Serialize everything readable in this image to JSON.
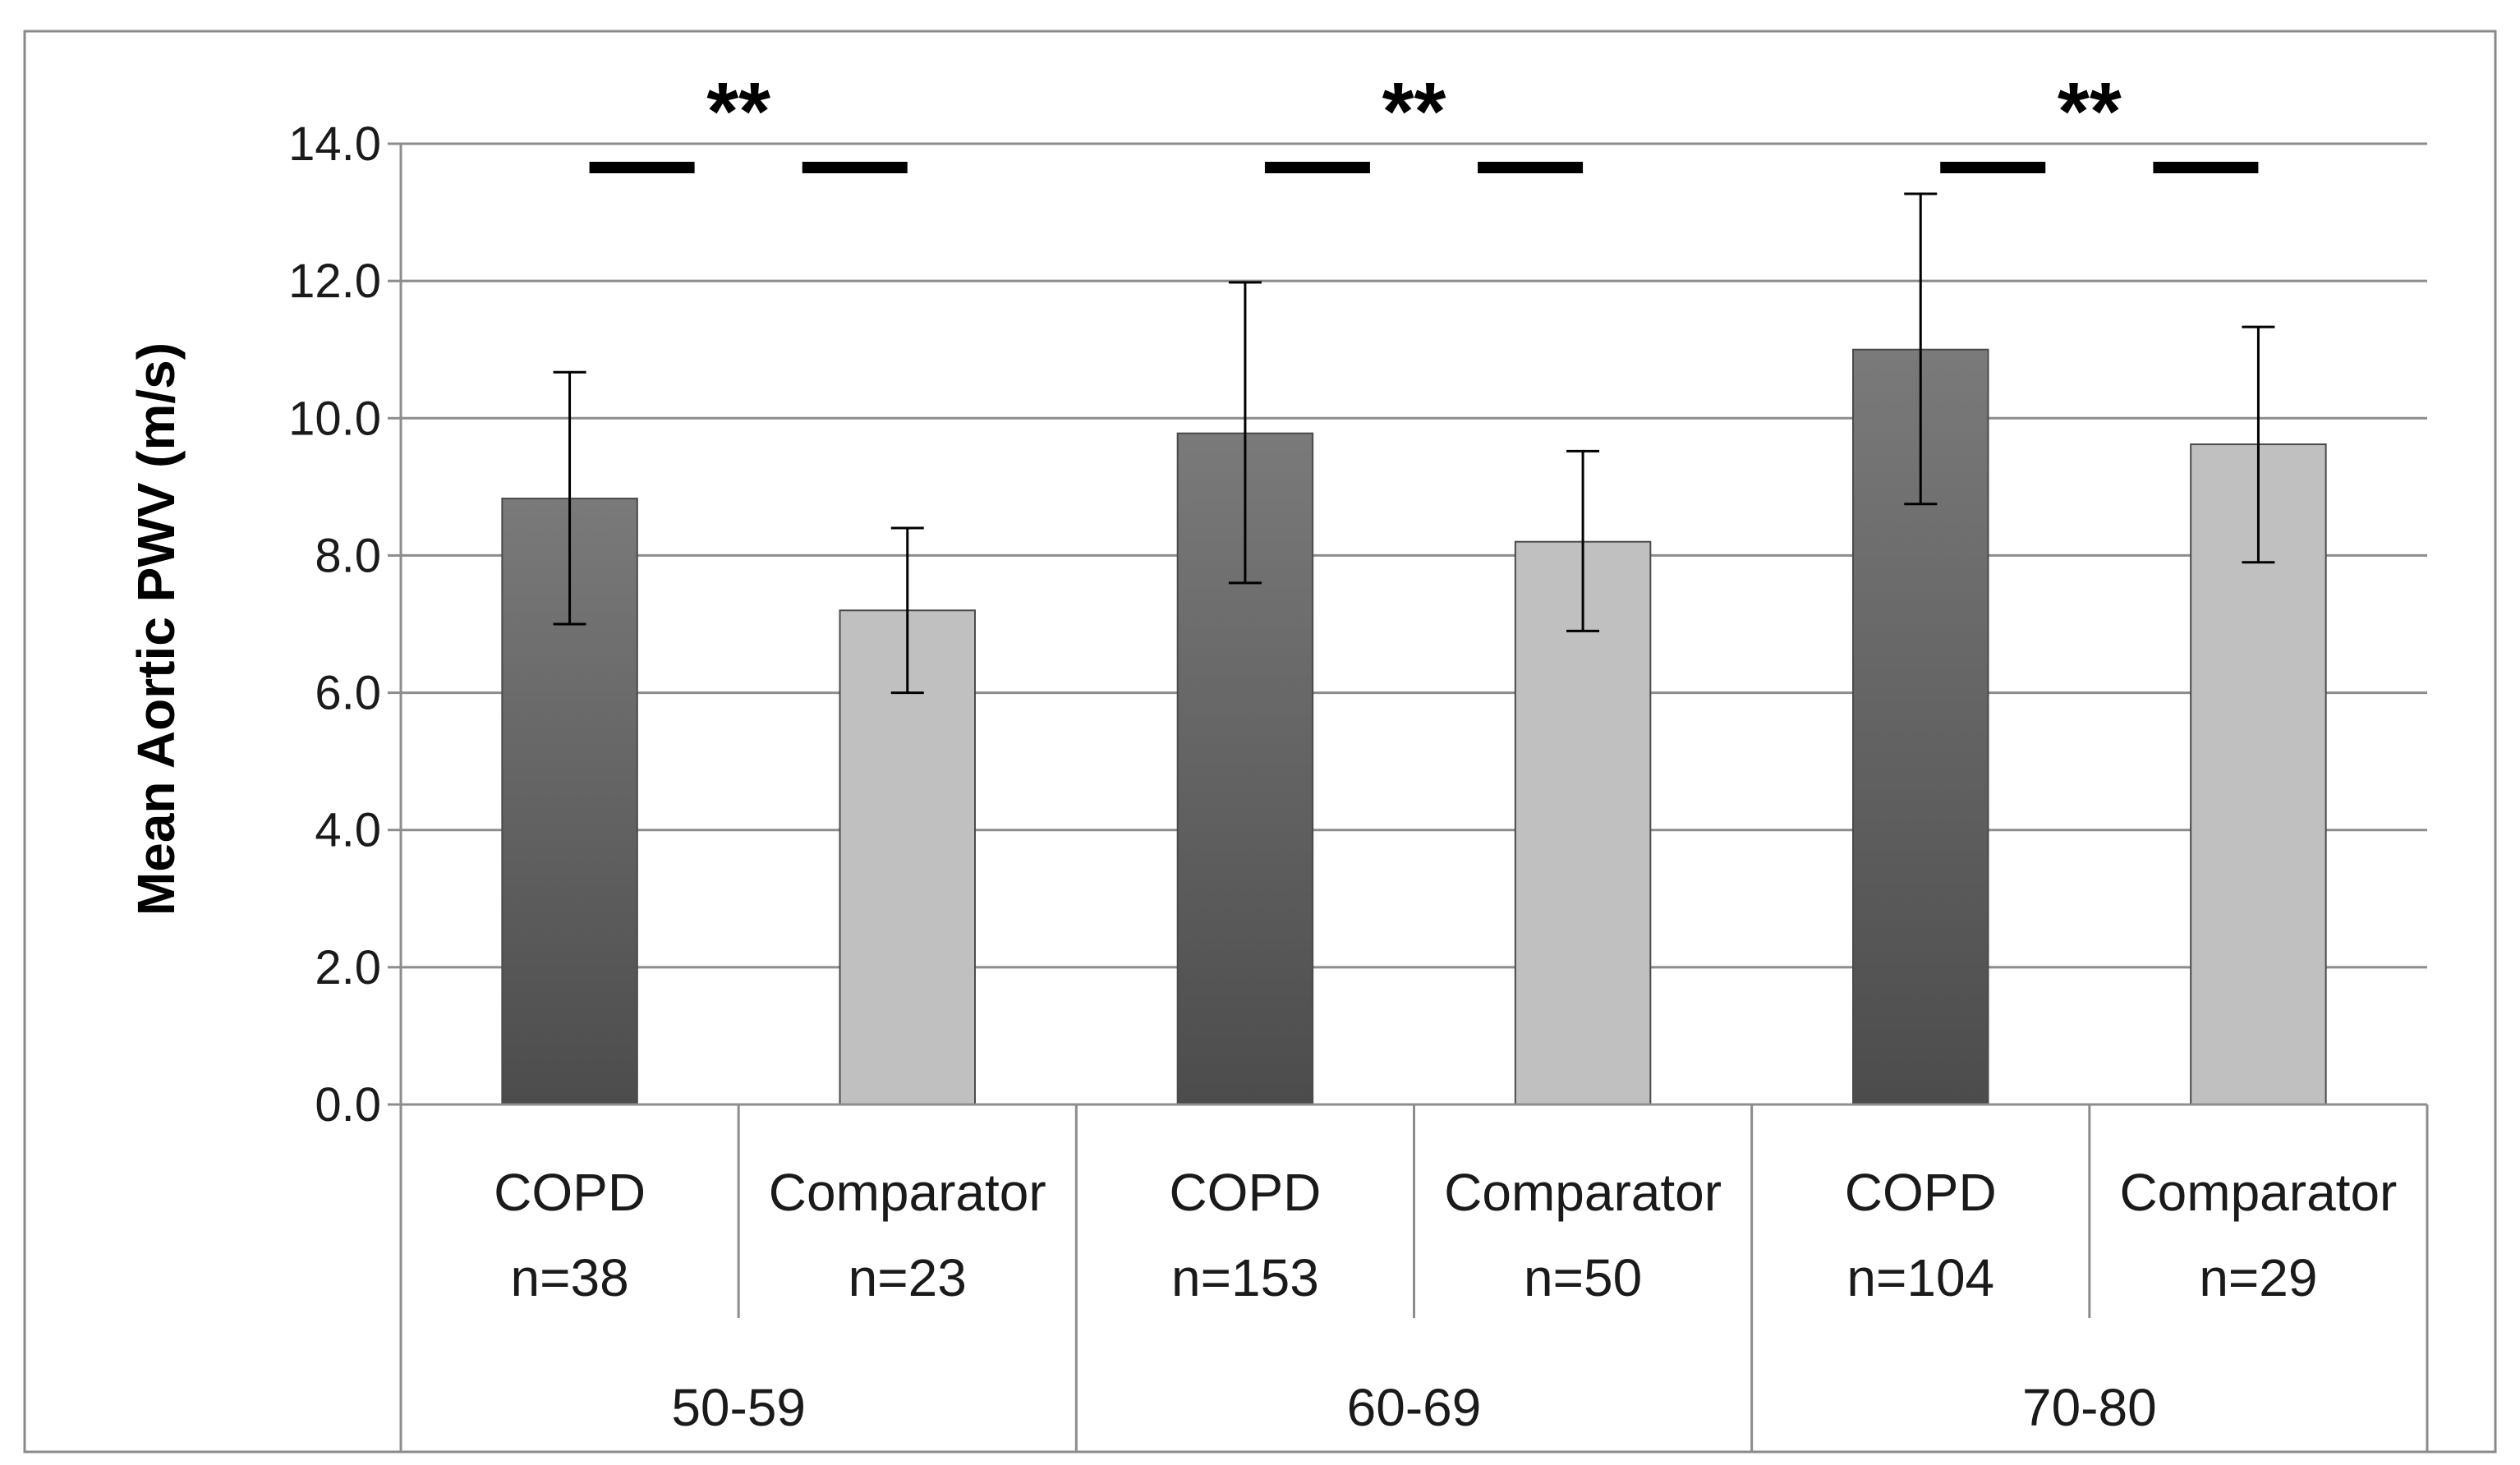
{
  "chart_data": {
    "type": "bar",
    "title": "",
    "ylabel": "Mean Aortic PWV (m/s)",
    "xlabel": "",
    "ylim": [
      0,
      14
    ],
    "yticks": [
      "0.0",
      "2.0",
      "4.0",
      "6.0",
      "8.0",
      "10.0",
      "12.0",
      "14.0"
    ],
    "grid": true,
    "groups": [
      {
        "label": "50-59",
        "significance": "**",
        "bars": [
          {
            "label": "COPD",
            "n": "n=38",
            "value": 8.83,
            "error_low": 7.0,
            "error_high": 10.67,
            "color": "#5f5f5f"
          },
          {
            "label": "Comparator",
            "n": "n=23",
            "value": 7.2,
            "error_low": 6.0,
            "error_high": 8.4,
            "color": "#c0c0c0"
          }
        ]
      },
      {
        "label": "60-69",
        "significance": "**",
        "bars": [
          {
            "label": "COPD",
            "n": "n=153",
            "value": 9.78,
            "error_low": 7.6,
            "error_high": 11.98,
            "color": "#5f5f5f"
          },
          {
            "label": "Comparator",
            "n": "n=50",
            "value": 8.2,
            "error_low": 6.9,
            "error_high": 9.52,
            "color": "#c0c0c0"
          }
        ]
      },
      {
        "label": "70-80",
        "significance": "**",
        "bars": [
          {
            "label": "COPD",
            "n": "n=104",
            "value": 11.0,
            "error_low": 8.75,
            "error_high": 13.27,
            "color": "#5f5f5f"
          },
          {
            "label": "Comparator",
            "n": "n=29",
            "value": 9.62,
            "error_low": 7.9,
            "error_high": 11.33,
            "color": "#c0c0c0"
          }
        ]
      }
    ]
  }
}
